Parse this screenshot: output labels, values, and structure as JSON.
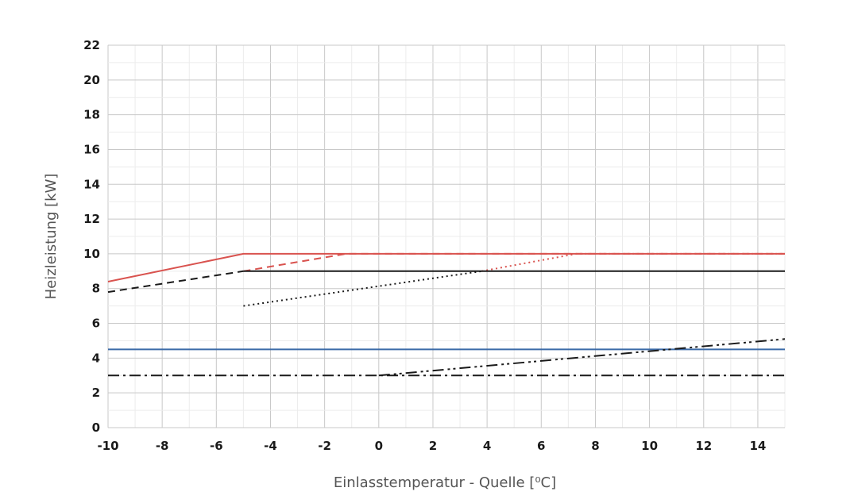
{
  "chart_data": {
    "type": "line",
    "xlabel": "Einlasstemperatur - Quelle [⁰C]",
    "ylabel": "Heizleistung [kW]",
    "xlim": [
      -10,
      15
    ],
    "ylim": [
      0,
      22
    ],
    "x_ticks": [
      "-10",
      "-8",
      "-6",
      "-4",
      "-2",
      "0",
      "2",
      "4",
      "6",
      "8",
      "10",
      "12",
      "14"
    ],
    "y_ticks": [
      "0",
      "2",
      "4",
      "6",
      "8",
      "10",
      "12",
      "14",
      "16",
      "18",
      "20",
      "22"
    ],
    "grid": true,
    "series": [
      {
        "color": "#d9534f",
        "dash": "solid",
        "points": [
          [
            -10,
            8.4
          ],
          [
            -5,
            10
          ],
          [
            15,
            10
          ]
        ]
      },
      {
        "color": "#d9534f",
        "dash": "dashed",
        "points": [
          [
            -5,
            9.0
          ],
          [
            -1.2,
            10
          ],
          [
            15,
            10
          ]
        ]
      },
      {
        "color": "#d9534f",
        "dash": "dotted",
        "points": [
          [
            3.8,
            9.0
          ],
          [
            7.3,
            10
          ],
          [
            15,
            10
          ]
        ]
      },
      {
        "color": "#1a1a1a",
        "dash": "solid",
        "points": [
          [
            -5,
            9.0
          ],
          [
            15,
            9.0
          ]
        ]
      },
      {
        "color": "#1a1a1a",
        "dash": "dashed",
        "points": [
          [
            -10,
            7.8
          ],
          [
            -5,
            9.0
          ]
        ]
      },
      {
        "color": "#1a1a1a",
        "dash": "dotted",
        "points": [
          [
            -5,
            7.0
          ],
          [
            3.8,
            9.0
          ]
        ]
      },
      {
        "color": "#3b6aa8",
        "dash": "solid",
        "points": [
          [
            -10,
            4.5
          ],
          [
            15,
            4.5
          ]
        ]
      },
      {
        "color": "#1a1a1a",
        "dash": "dashdot",
        "points": [
          [
            -10,
            3.0
          ],
          [
            15,
            3.0
          ]
        ]
      },
      {
        "color": "#1a1a1a",
        "dash": "dashdotdot",
        "points": [
          [
            0,
            3.0
          ],
          [
            15,
            5.1
          ]
        ]
      }
    ]
  }
}
